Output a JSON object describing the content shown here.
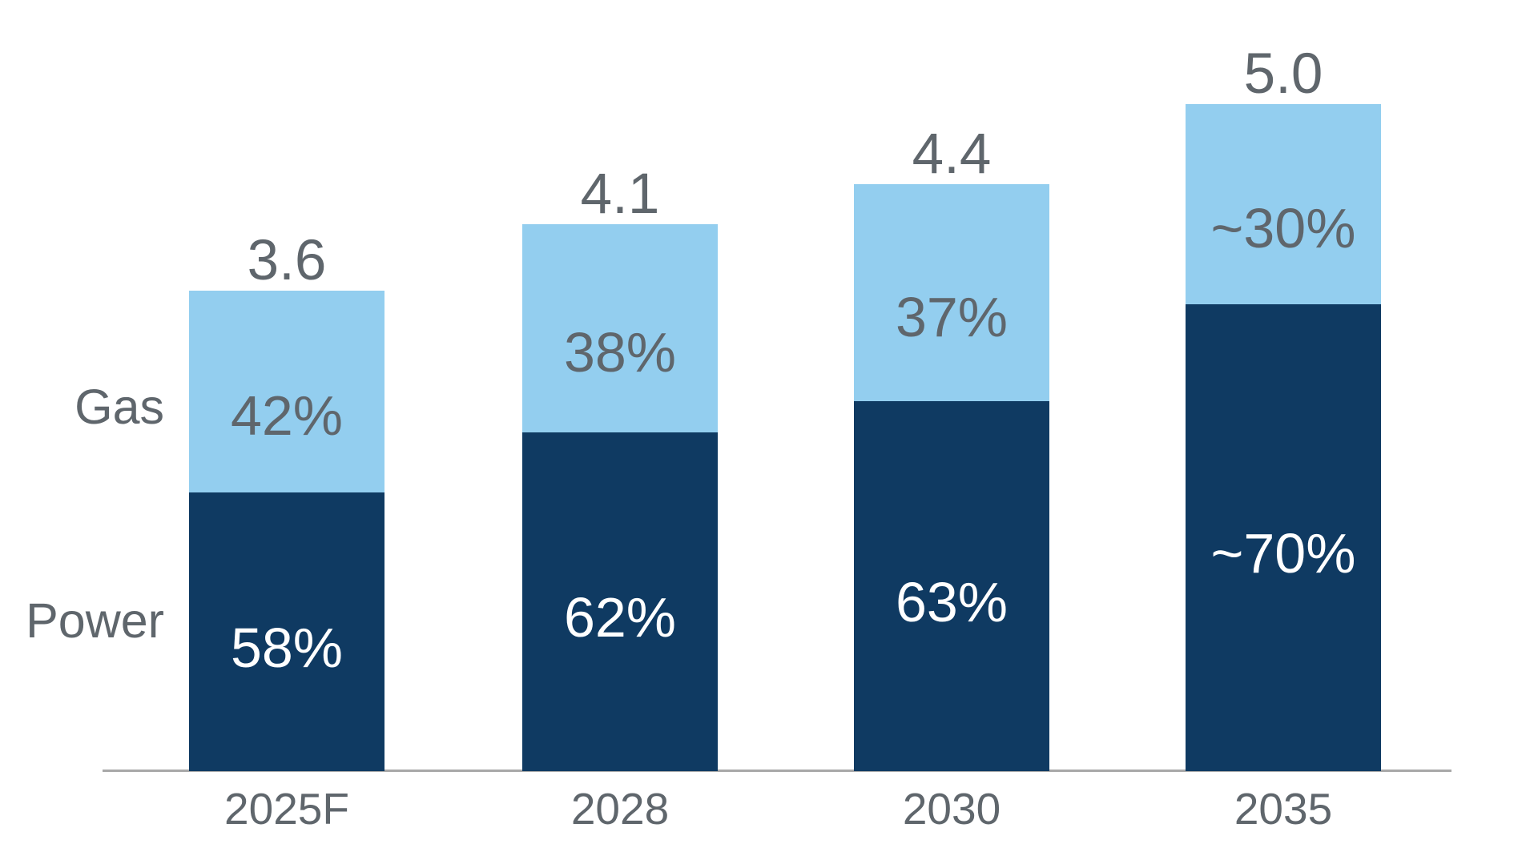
{
  "chart_data": {
    "type": "bar",
    "stacked": true,
    "title": "",
    "categories": [
      "2025F",
      "2028",
      "2030",
      "2035"
    ],
    "totals": [
      3.6,
      4.1,
      4.4,
      5.0
    ],
    "total_labels": [
      "3.6",
      "4.1",
      "4.4",
      "5.0"
    ],
    "series": [
      {
        "name": "Gas",
        "values": [
          42,
          38,
          37,
          30
        ],
        "labels": [
          "42%",
          "38%",
          "37%",
          "~30%"
        ],
        "color": "#93CEEF"
      },
      {
        "name": "Power",
        "values": [
          58,
          62,
          63,
          70
        ],
        "labels": [
          "58%",
          "62%",
          "63%",
          "~70%"
        ],
        "color": "#0F3A62"
      }
    ],
    "value_unit": "percent-of-total",
    "ylim": [
      0,
      5.2
    ],
    "grid": false,
    "y_axis_visible": false,
    "x_axis_line_visible": true,
    "legend_position": "left-of-bars",
    "colors": {
      "gas": "#93CEEF",
      "power": "#0F3A62",
      "label_gray": "#5F666C",
      "power_label_text": "#FFFFFF",
      "axis_line": "#A8A8A8",
      "background": "#FFFFFF"
    }
  }
}
